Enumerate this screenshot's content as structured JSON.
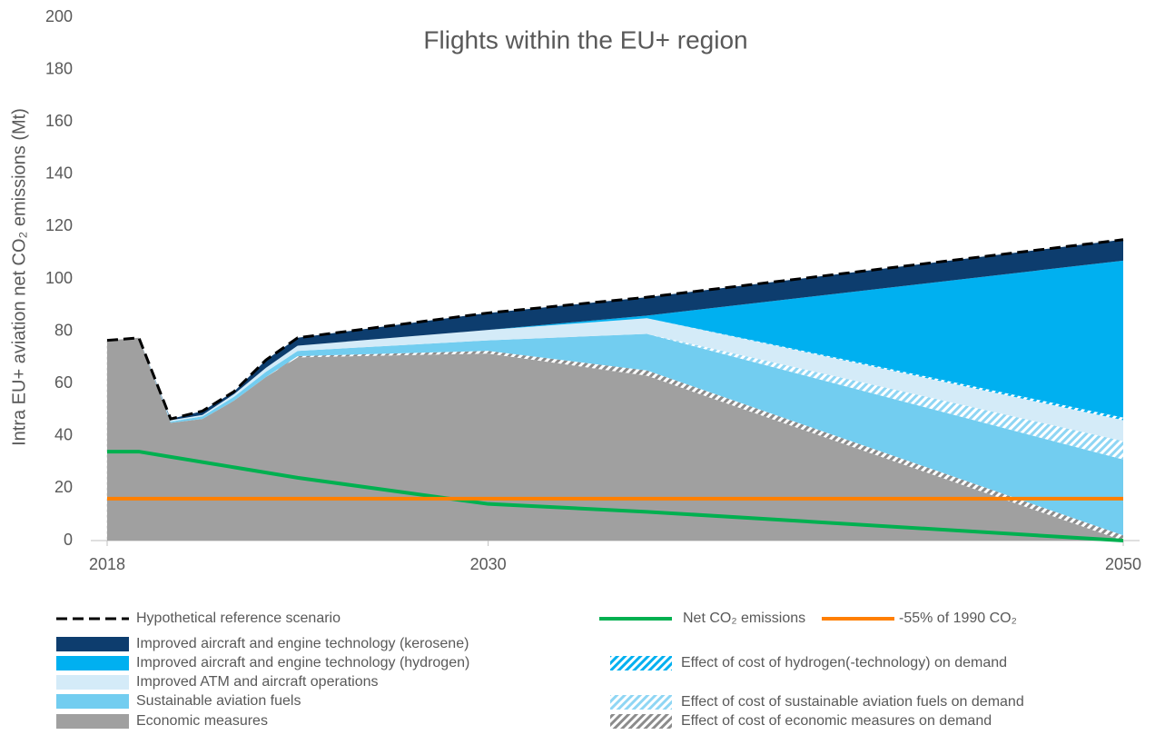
{
  "chart_data": {
    "type": "stacked_area",
    "title": "Flights within the EU+ region",
    "y_label": "Intra EU+ aviation net CO₂ emissions (Mt)",
    "x": [
      2018,
      2019,
      2020,
      2021,
      2022,
      2023,
      2024,
      2030,
      2035,
      2050
    ],
    "xlim": [
      2018,
      2050
    ],
    "xticks": [
      2018,
      2030,
      2050
    ],
    "ylim": [
      0,
      200
    ],
    "yticks": [
      0,
      20,
      40,
      60,
      80,
      100,
      120,
      140,
      160,
      180,
      200
    ],
    "grid": false,
    "legend": "bottom",
    "series": [
      {
        "name": "Economic measures",
        "color": "#a0a0a0",
        "kind": "area",
        "values": [
          76.5,
          77.5,
          45,
          46.5,
          53.5,
          62.5,
          70,
          71.5,
          63,
          0
        ]
      },
      {
        "name": "Effect of cost of economic measures on demand",
        "color": "#8c8c8c",
        "kind": "hatch",
        "values": [
          0,
          0,
          0,
          0,
          0,
          0,
          0.5,
          1,
          2,
          2
        ]
      },
      {
        "name": "Sustainable aviation fuels",
        "color": "#72cdf0",
        "kind": "area",
        "values": [
          0,
          0,
          0.5,
          1,
          1.5,
          2,
          2,
          4,
          14,
          29
        ]
      },
      {
        "name": "Effect of cost of sustainable aviation fuels on demand",
        "color": "#8fd6f4",
        "kind": "hatch",
        "values": [
          0,
          0,
          0,
          0,
          0,
          0,
          0,
          0,
          0,
          7
        ]
      },
      {
        "name": "Improved ATM and aircraft operations",
        "color": "#d4ebf8",
        "kind": "area",
        "values": [
          0,
          0,
          0.5,
          0.5,
          1,
          1.5,
          2,
          4,
          6,
          8
        ]
      },
      {
        "name": "Effect of cost of hydrogen(-technology) on demand",
        "color": "#00b0f0",
        "kind": "hatch",
        "values": [
          0,
          0,
          0,
          0,
          0,
          0,
          0,
          0,
          0,
          1
        ]
      },
      {
        "name": "Improved aircraft and engine technology (hydrogen)",
        "color": "#00b0f0",
        "kind": "area",
        "values": [
          0,
          0,
          0,
          0,
          0,
          0,
          0,
          0,
          1,
          60
        ]
      },
      {
        "name": "Improved aircraft and engine technology (kerosene)",
        "color": "#0d3d6e",
        "kind": "area",
        "values": [
          0,
          0,
          0.5,
          1.5,
          1,
          3,
          3,
          6.5,
          7,
          8
        ]
      },
      {
        "name": "Hypothetical reference scenario",
        "color": "#000000",
        "kind": "line",
        "dashed": true,
        "values": [
          76.5,
          77.5,
          46.5,
          49.5,
          57,
          69,
          77.5,
          87,
          93,
          115
        ]
      },
      {
        "name": "Net CO₂ emissions",
        "color": "#00b050",
        "kind": "line",
        "values": [
          34,
          34,
          32,
          30,
          28,
          26,
          24,
          14,
          11,
          0
        ]
      },
      {
        "name": "-55% of 1990 CO₂",
        "color": "#ff7f00",
        "kind": "line",
        "values": [
          16,
          16,
          16,
          16,
          16,
          16,
          16,
          16,
          16,
          16
        ]
      }
    ]
  }
}
